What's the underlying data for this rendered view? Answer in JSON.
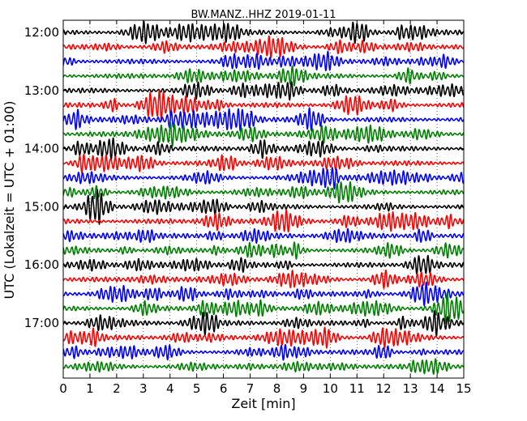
{
  "chart_data": {
    "type": "line",
    "title": "BW.MANZ..HHZ 2019-01-11",
    "xlabel": "Zeit  [min]",
    "ylabel": "UTC (Lokalzeit = UTC + 01:00)",
    "xlim": [
      0,
      15
    ],
    "x_ticks": [
      "0",
      "1",
      "2",
      "3",
      "4",
      "5",
      "6",
      "7",
      "8",
      "9",
      "10",
      "11",
      "12",
      "13",
      "14",
      "15"
    ],
    "y_tick_labels": [
      "12:00",
      "13:00",
      "14:00",
      "15:00",
      "16:00",
      "17:00"
    ],
    "grid": "dotted vertical lines at each minute",
    "trace_colors": [
      "#000000",
      "#ff0000",
      "#0000ff",
      "#008000"
    ],
    "trace_start_times": [
      "12:00",
      "12:15",
      "12:30",
      "12:45",
      "13:00",
      "13:15",
      "13:30",
      "13:45",
      "14:00",
      "14:15",
      "14:30",
      "14:45",
      "15:00",
      "15:15",
      "15:30",
      "15:45",
      "16:00",
      "16:15",
      "16:30",
      "16:45",
      "17:00",
      "17:15",
      "17:30",
      "17:45"
    ],
    "trace_minutes": 15
  }
}
